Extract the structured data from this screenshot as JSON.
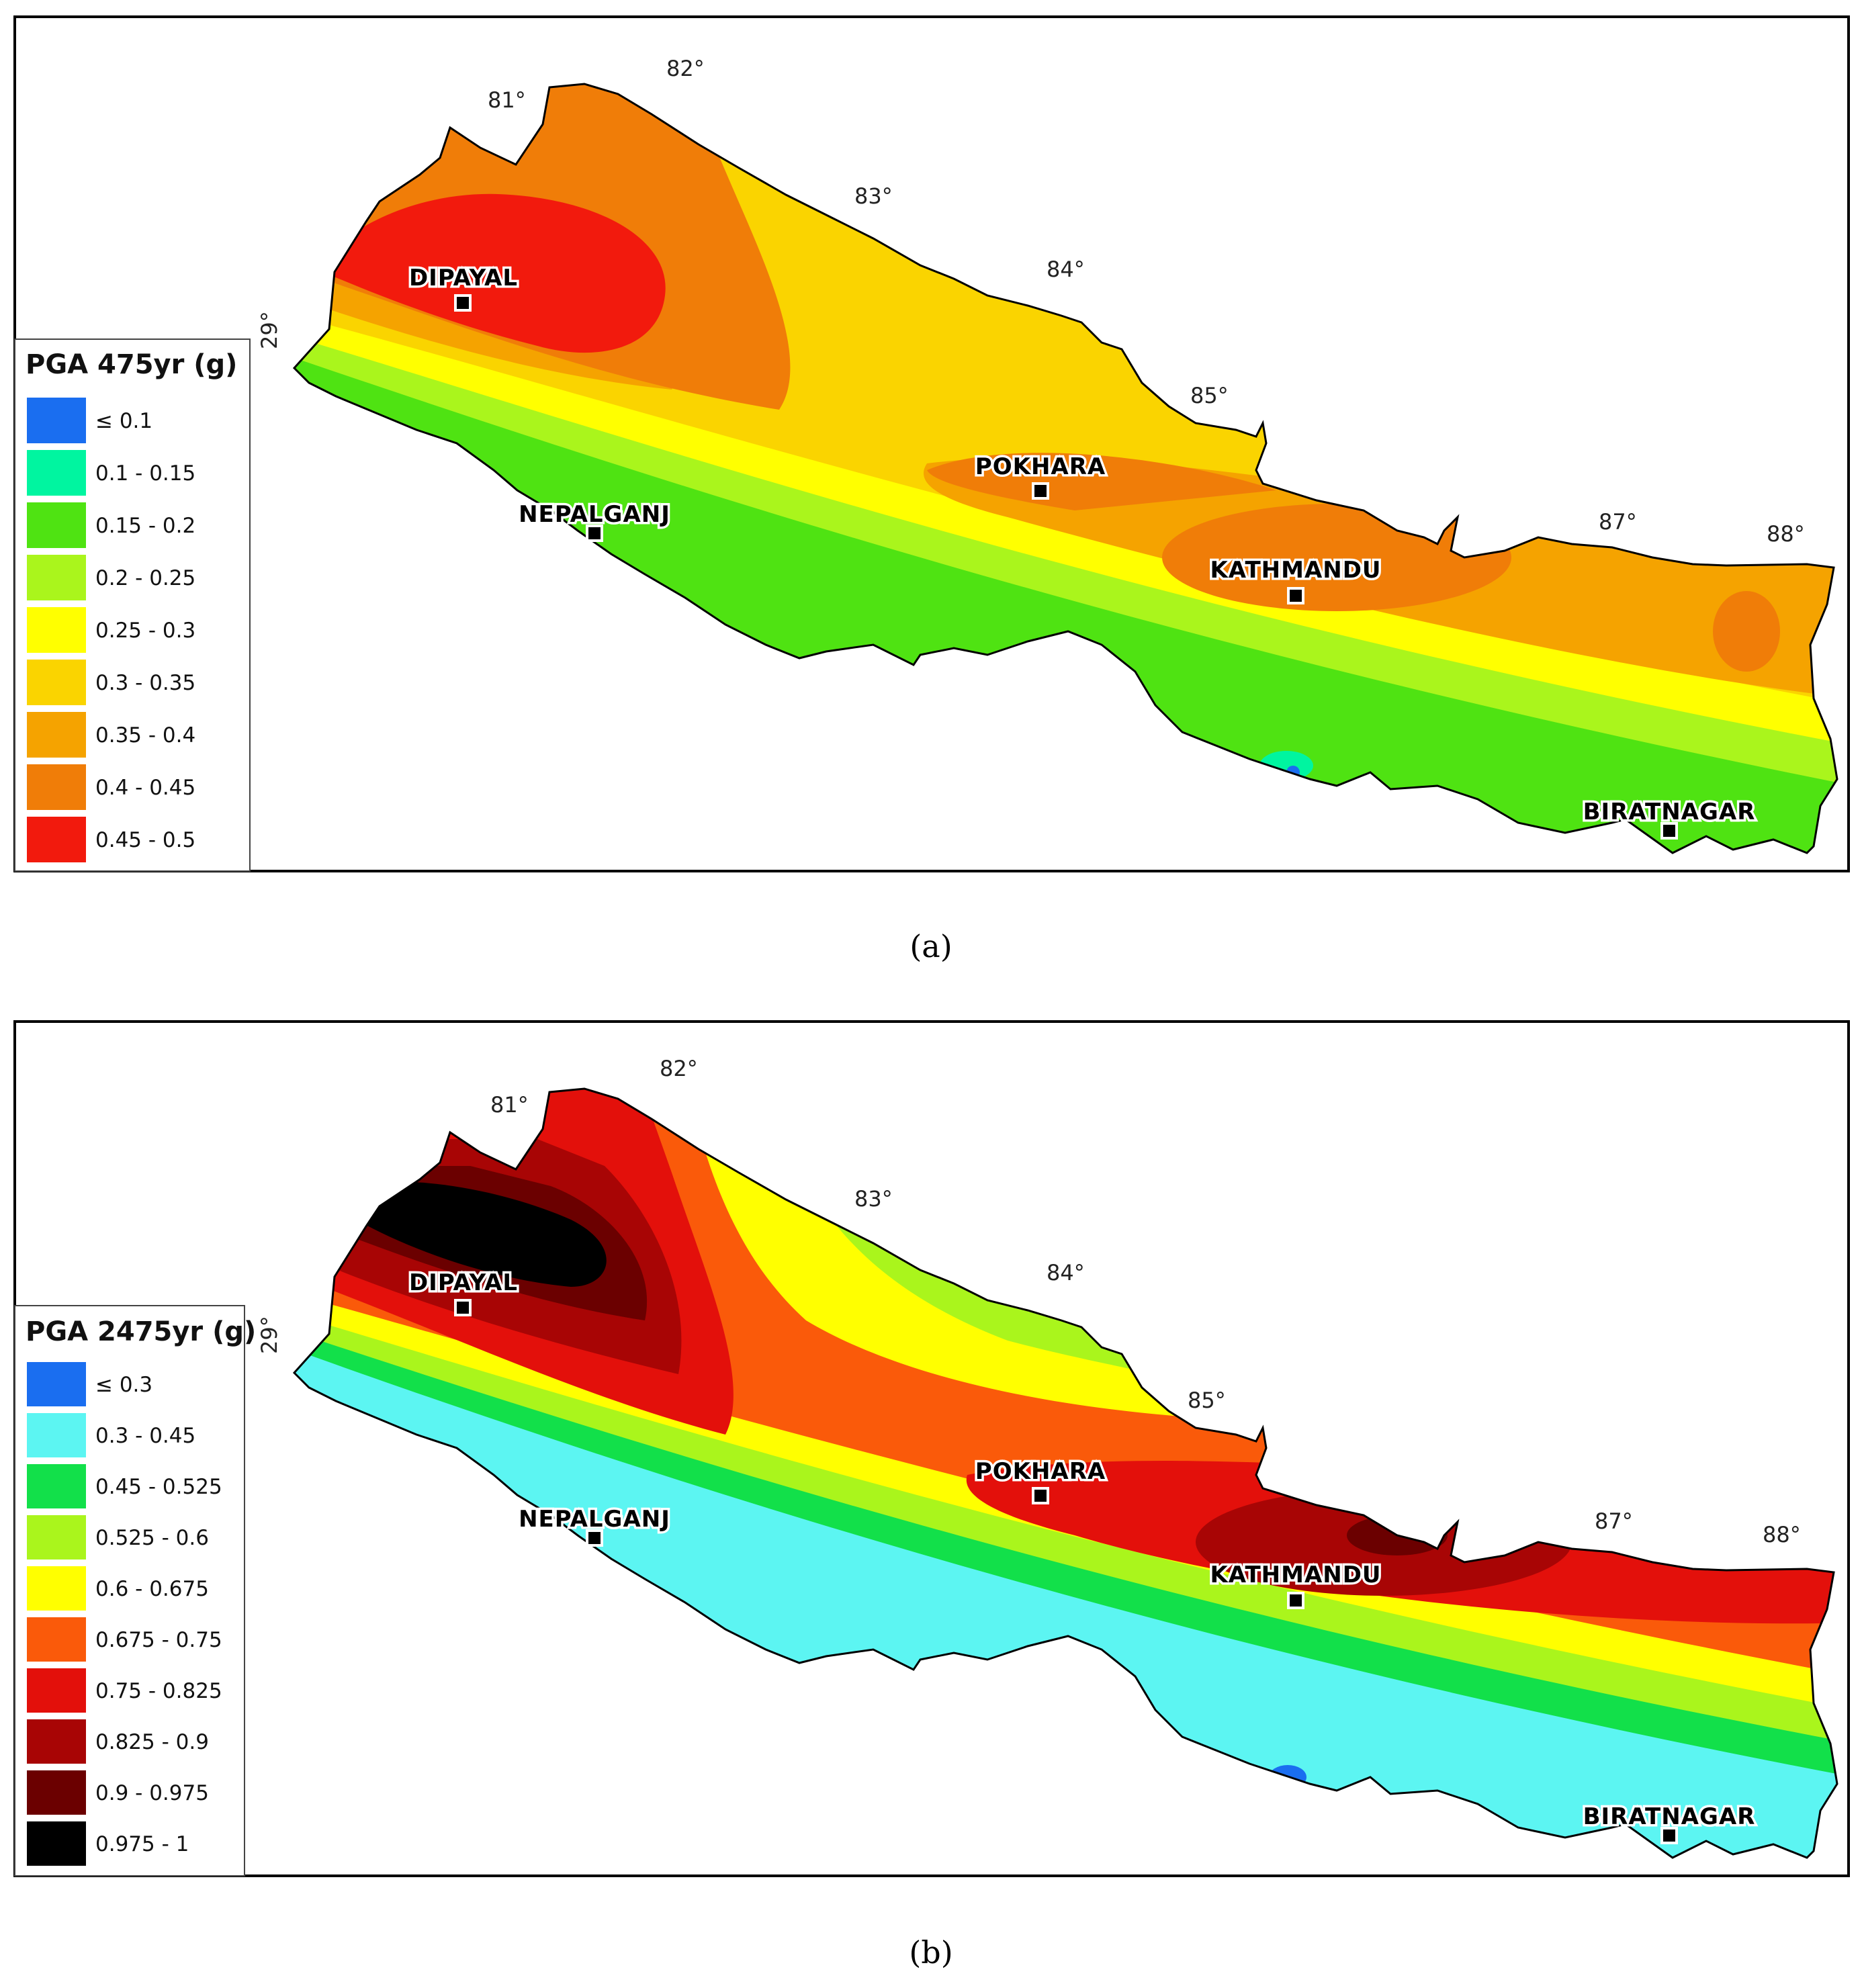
{
  "panels": [
    {
      "caption": "(a)",
      "legend": {
        "title": "PGA 475yr (g)",
        "classes": [
          {
            "label": "≤ 0.1",
            "color": "#1a6ef0"
          },
          {
            "label": "0.1 - 0.15",
            "color": "#00f5a0"
          },
          {
            "label": "0.15 - 0.2",
            "color": "#4fe312"
          },
          {
            "label": "0.2 - 0.25",
            "color": "#aaf51c"
          },
          {
            "label": "0.25 - 0.3",
            "color": "#ffff00"
          },
          {
            "label": "0.3 - 0.35",
            "color": "#fad400"
          },
          {
            "label": "0.35 - 0.4",
            "color": "#f5a300"
          },
          {
            "label": "0.4 - 0.45",
            "color": "#f07d08"
          },
          {
            "label": "0.45 - 0.5",
            "color": "#f21a0d"
          }
        ]
      },
      "longitudes": [
        "81°",
        "82°",
        "83°",
        "84°",
        "85°",
        "87°",
        "88°"
      ],
      "latitude": "29°",
      "cities": [
        "DIPAYAL",
        "POKHARA",
        "NEPALGANJ",
        "KATHMANDU",
        "BIRATNAGAR"
      ]
    },
    {
      "caption": "(b)",
      "legend": {
        "title": "PGA 2475yr (g)",
        "classes": [
          {
            "label": "≤ 0.3",
            "color": "#1a6ef0"
          },
          {
            "label": "0.3 - 0.45",
            "color": "#5cf5f2"
          },
          {
            "label": "0.45 - 0.525",
            "color": "#12e04a"
          },
          {
            "label": "0.525 - 0.6",
            "color": "#aaf51c"
          },
          {
            "label": "0.6 - 0.675",
            "color": "#ffff00"
          },
          {
            "label": "0.675 - 0.75",
            "color": "#fa5a0a"
          },
          {
            "label": "0.75 - 0.825",
            "color": "#e3100b"
          },
          {
            "label": "0.825 - 0.9",
            "color": "#a80505"
          },
          {
            "label": "0.9 - 0.975",
            "color": "#6b0000"
          },
          {
            "label": "0.975 - 1",
            "color": "#000000"
          }
        ]
      },
      "longitudes": [
        "81°",
        "82°",
        "83°",
        "84°",
        "85°",
        "87°",
        "88°"
      ],
      "latitude": "29°",
      "cities": [
        "DIPAYAL",
        "POKHARA",
        "NEPALGANJ",
        "KATHMANDU",
        "BIRATNAGAR"
      ]
    }
  ]
}
